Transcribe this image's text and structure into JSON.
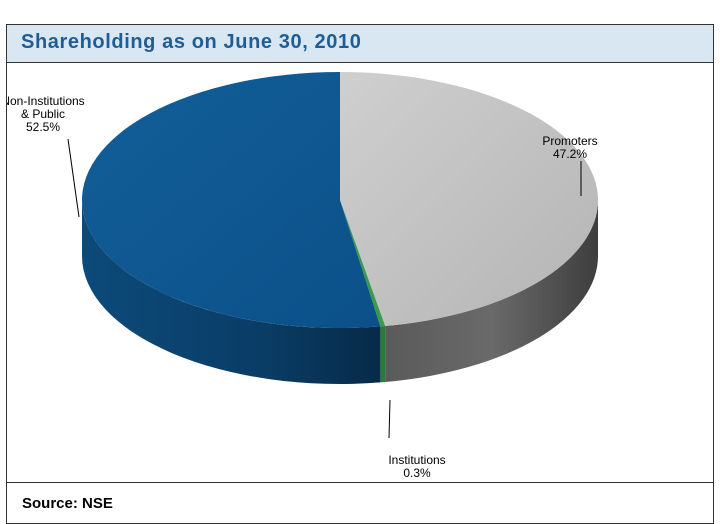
{
  "header": {
    "title": "Shareholding as on June 30, 2010"
  },
  "footer": {
    "source": "Source: NSE"
  },
  "chart_data": {
    "type": "pie",
    "title": "Shareholding as on June 30, 2010",
    "style": "3d",
    "categories": [
      "Promoters",
      "Institutions",
      "Non-Institutions & Public"
    ],
    "values": [
      47.2,
      0.3,
      52.5
    ],
    "unit": "%",
    "data_labels": [
      {
        "lines": [
          "Promoters",
          "47.2%"
        ]
      },
      {
        "lines": [
          "Institutions",
          "0.3%"
        ]
      },
      {
        "lines": [
          "Non-Institutions",
          "& Public",
          "52.5%"
        ]
      }
    ],
    "colors": {
      "Promoters": "#c4c4c4",
      "Institutions": "#3a9a4a",
      "Non-Institutions & Public": "#0f5b94"
    },
    "legend": "none"
  }
}
